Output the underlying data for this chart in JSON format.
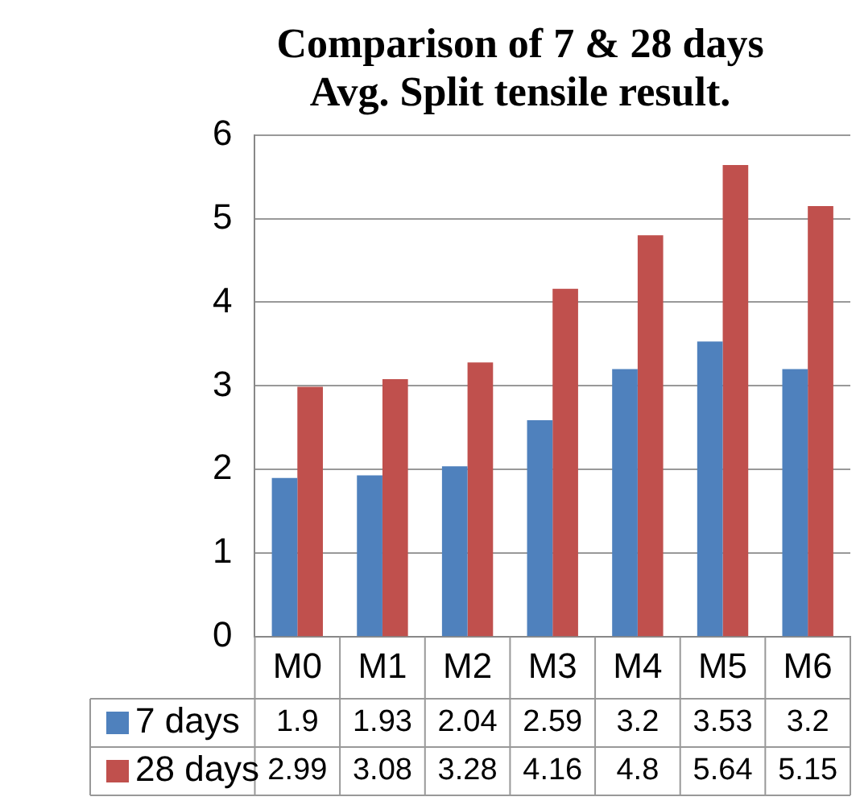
{
  "chart_data": {
    "type": "bar",
    "title": "Comparison of 7 & 28 days\nAvg. Split tensile result.",
    "categories": [
      "M0",
      "M1",
      "M2",
      "M3",
      "M4",
      "M5",
      "M6"
    ],
    "series": [
      {
        "name": "7 days",
        "color": "#4f81bd",
        "values": [
          1.9,
          1.93,
          2.04,
          2.59,
          3.2,
          3.53,
          3.2
        ]
      },
      {
        "name": "28 days",
        "color": "#c0504d",
        "values": [
          2.99,
          3.08,
          3.28,
          4.16,
          4.8,
          5.64,
          5.15
        ]
      }
    ],
    "ylim": [
      0,
      6
    ],
    "yticks": [
      0,
      1,
      2,
      3,
      4,
      5,
      6
    ],
    "grid": "y",
    "legend": "bottom",
    "data_labels": true
  }
}
